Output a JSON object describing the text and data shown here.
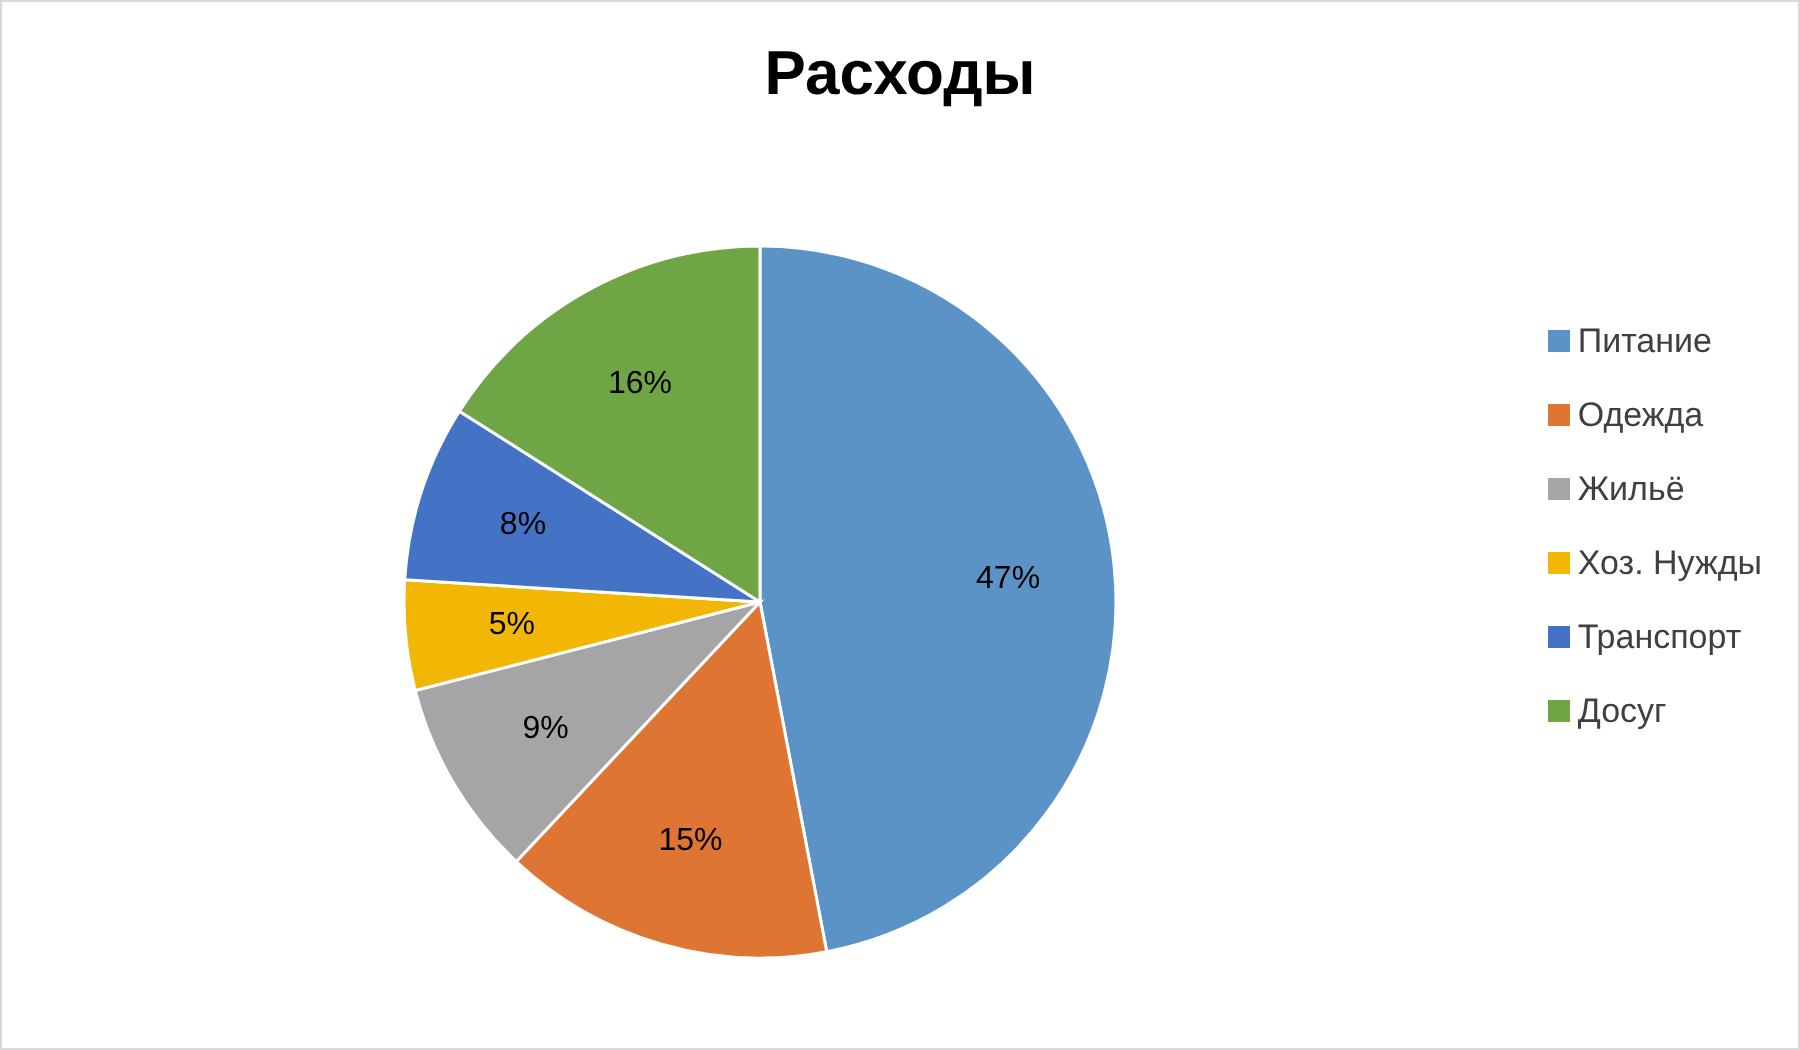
{
  "chart_data": {
    "type": "pie",
    "title": "Расходы",
    "categories": [
      "Питание",
      "Одежда",
      "Жильё",
      "Хоз. Нужды",
      "Транспорт",
      "Досуг"
    ],
    "values": [
      47,
      15,
      9,
      5,
      8,
      16
    ],
    "colors": [
      "#5b93c7",
      "#de7532",
      "#a5a5a5",
      "#f2b705",
      "#4472c4",
      "#70a545"
    ],
    "value_labels": [
      "47%",
      "15%",
      "9%",
      "5%",
      "8%",
      "16%"
    ],
    "legend": "right"
  }
}
